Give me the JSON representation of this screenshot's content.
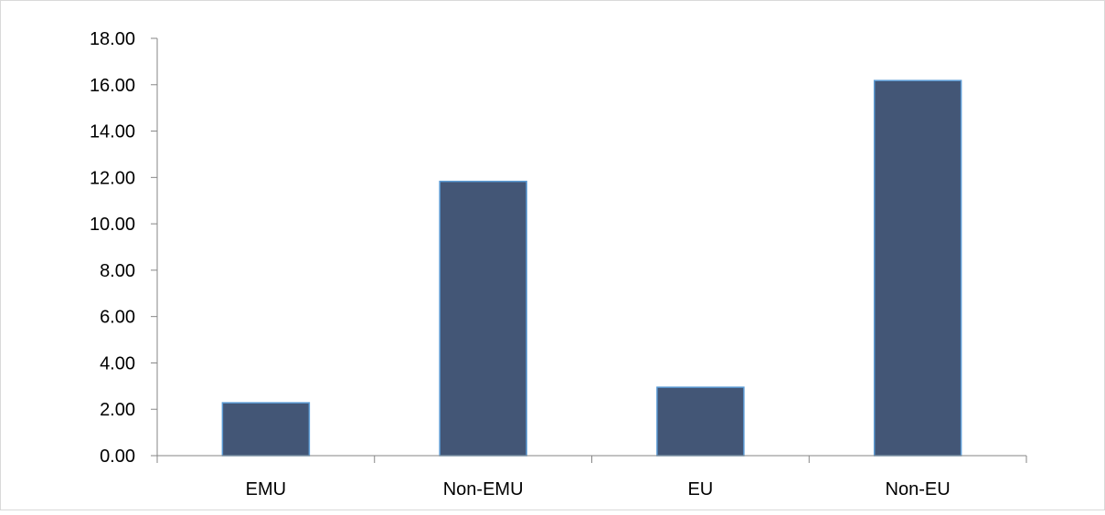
{
  "chart_data": {
    "type": "bar",
    "title": "",
    "xlabel": "",
    "ylabel": "",
    "categories": [
      "EMU",
      "Non-EMU",
      "EU",
      "Non-EU"
    ],
    "values": [
      2.28,
      11.83,
      2.95,
      16.18
    ],
    "ylim": [
      0,
      18
    ],
    "yticks": [
      "0.00",
      "2.00",
      "4.00",
      "6.00",
      "8.00",
      "10.00",
      "12.00",
      "14.00",
      "16.00",
      "18.00"
    ],
    "grid": false,
    "legend": "none",
    "colors": {
      "bar_fill": "#435676",
      "bar_stroke": "#5b9bd5",
      "axis": "#868686",
      "frame": "#d9d9d9"
    }
  }
}
